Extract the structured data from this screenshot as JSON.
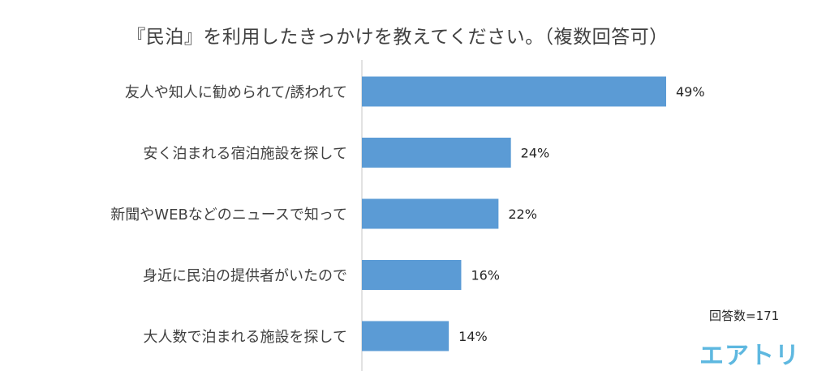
{
  "chart_data": {
    "type": "bar",
    "orientation": "horizontal",
    "title": "『民泊』を利用したきっかけを教えてください。（複数回答可）",
    "categories": [
      "友人や知人に勧められて/誘われて",
      "安く泊まれる宿泊施設を探して",
      "新聞やWEBなどのニュースで知って",
      "身近に民泊の提供者がいたので",
      "大人数で泊まれる施設を探して"
    ],
    "values": [
      49,
      24,
      22,
      16,
      14
    ],
    "value_labels": [
      "49%",
      "24%",
      "22%",
      "16%",
      "14%"
    ],
    "unit": "%",
    "xlim": [
      0,
      55
    ],
    "grid": false,
    "legend": "none",
    "bar_color": "#5b9bd5",
    "axis_color": "#d9d9d9"
  },
  "annotations": {
    "respondents": "回答数=171"
  },
  "brand": {
    "logo_text": "エアトリ",
    "color": "#5eb8e0"
  }
}
